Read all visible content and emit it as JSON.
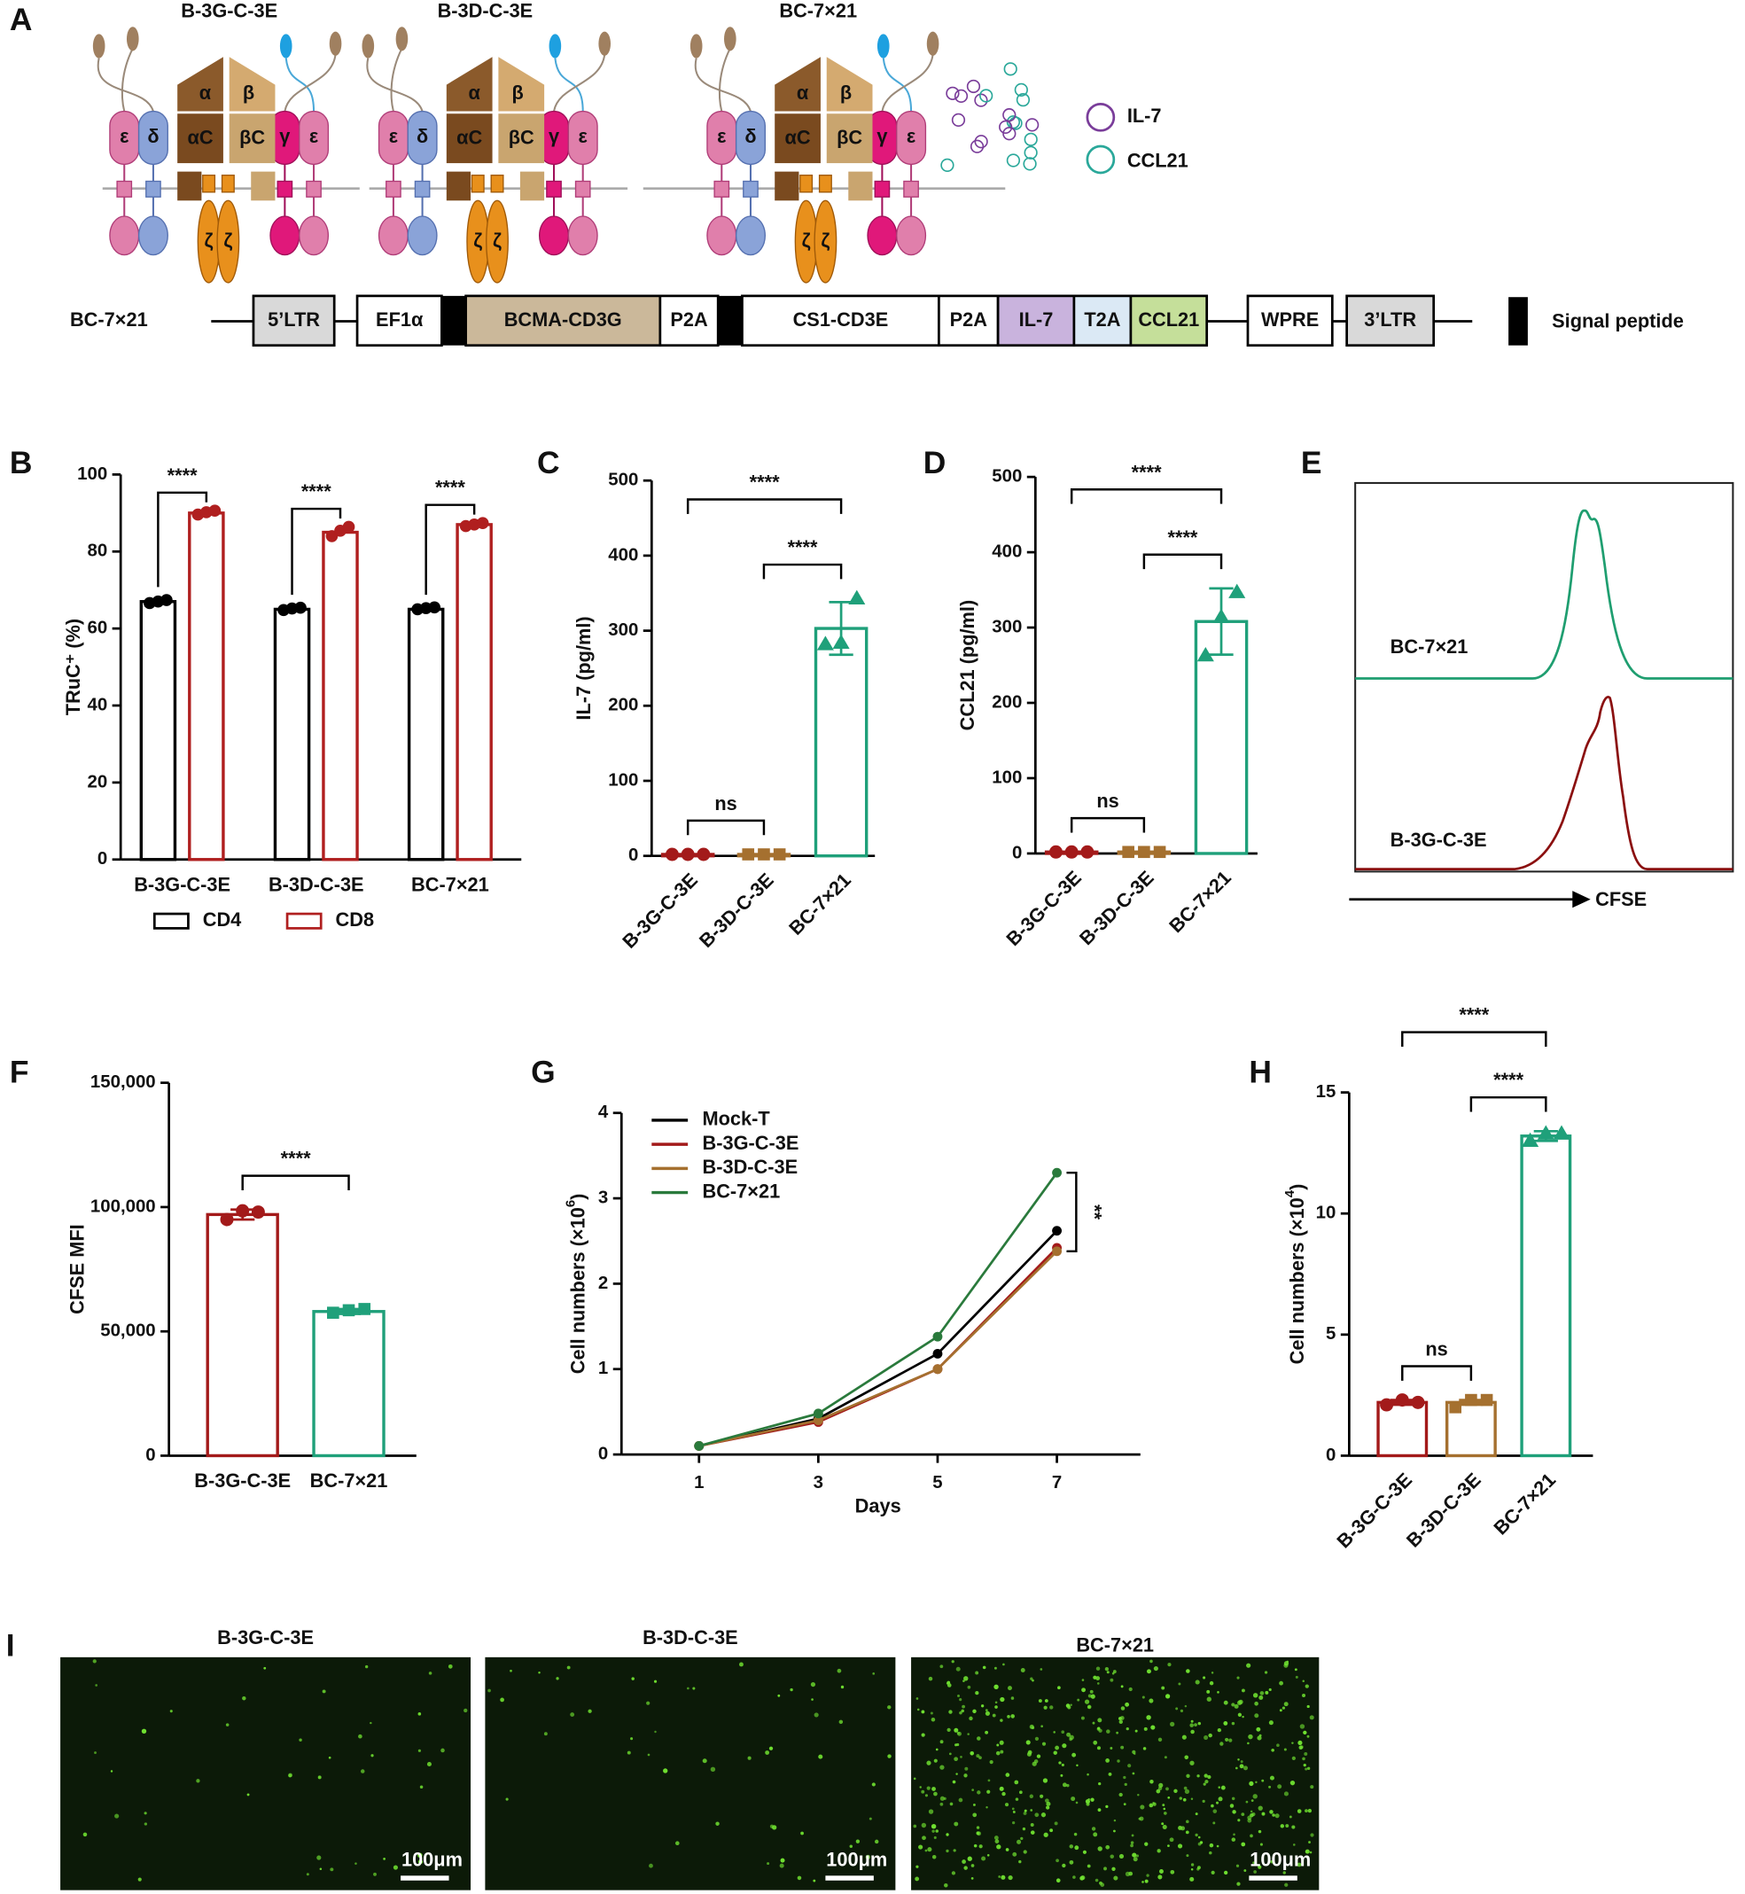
{
  "panel_labels": [
    "A",
    "B",
    "C",
    "D",
    "E",
    "F",
    "G",
    "H",
    "I"
  ],
  "diagram": {
    "construct_titles": [
      "B-3G-C-3E",
      "B-3D-C-3E",
      "BC-7×21"
    ],
    "chain_labels": [
      "ε",
      "δ",
      "α",
      "αC",
      "β",
      "βC",
      "γ",
      "ζ"
    ],
    "legend": [
      "IL-7",
      "CCL21"
    ],
    "vector_name": "BC-7×21",
    "elements": [
      "5’LTR",
      "EF1α",
      "BCMA-CD3G",
      "P2A",
      "CS1-CD3E",
      "P2A",
      "IL-7",
      "T2A",
      "CCL21",
      "WPRE",
      "3’LTR"
    ],
    "signal_peptide": "Signal peptide"
  },
  "chart_data": [
    {
      "type": "grouped_bar",
      "y_label": "TRuC⁺ (%)",
      "categories": [
        "B-3G-C-3E",
        "B-3D-C-3E",
        "BC-7×21"
      ],
      "series": [
        {
          "name": "CD4",
          "color": "#000000",
          "values": [
            67,
            65,
            65
          ],
          "points": [
            [
              66.6,
              67,
              67.4
            ],
            [
              64.8,
              65.2,
              65.4
            ],
            [
              65,
              65.3,
              65.5
            ]
          ]
        },
        {
          "name": "CD8",
          "color": "#b01f1f",
          "values": [
            90,
            85,
            87
          ],
          "points": [
            [
              89.6,
              90.2,
              90.6
            ],
            [
              84,
              85.4,
              86.4
            ],
            [
              86.6,
              87,
              87.4
            ]
          ]
        }
      ],
      "ylim": [
        0,
        100
      ],
      "yticks": [
        0,
        20,
        40,
        60,
        80,
        100
      ],
      "significance": [
        "****",
        "****",
        "****"
      ],
      "legend": "bottom"
    },
    {
      "type": "bar",
      "y_label": "IL-7 (pg/ml)",
      "categories": [
        "B-3G-C-3E",
        "B-3D-C-3E",
        "BC-7×21"
      ],
      "values": [
        2,
        2,
        303
      ],
      "errors": [
        0,
        0,
        35
      ],
      "points": [
        [
          2,
          2,
          2
        ],
        [
          2,
          2,
          2
        ],
        [
          282,
          284,
          343
        ]
      ],
      "colors": [
        "#a31a1a",
        "#a5702f",
        "#1fa07a"
      ],
      "markers": [
        "circle",
        "square",
        "triangle"
      ],
      "ylim": [
        0,
        500
      ],
      "yticks": [
        0,
        100,
        200,
        300,
        400,
        500
      ],
      "comparisons": [
        {
          "label": "ns",
          "between": [
            "B-3G-C-3E",
            "B-3D-C-3E"
          ]
        },
        {
          "label": "****",
          "between": [
            "B-3D-C-3E",
            "BC-7×21"
          ]
        },
        {
          "label": "****",
          "between": [
            "B-3G-C-3E",
            "BC-7×21"
          ]
        }
      ]
    },
    {
      "type": "bar",
      "y_label": "CCL21 (pg/ml)",
      "categories": [
        "B-3G-C-3E",
        "B-3D-C-3E",
        "BC-7×21"
      ],
      "values": [
        2,
        2,
        308
      ],
      "errors": [
        0,
        0,
        44
      ],
      "points": [
        [
          2,
          2,
          2
        ],
        [
          2,
          2,
          2
        ],
        [
          263,
          314,
          347
        ]
      ],
      "colors": [
        "#a31a1a",
        "#a5702f",
        "#1fa07a"
      ],
      "markers": [
        "circle",
        "square",
        "triangle"
      ],
      "ylim": [
        0,
        500
      ],
      "yticks": [
        0,
        100,
        200,
        300,
        400,
        500
      ],
      "comparisons": [
        {
          "label": "ns",
          "between": [
            "B-3G-C-3E",
            "B-3D-C-3E"
          ]
        },
        {
          "label": "****",
          "between": [
            "B-3D-C-3E",
            "BC-7×21"
          ]
        },
        {
          "label": "****",
          "between": [
            "B-3G-C-3E",
            "BC-7×21"
          ]
        }
      ]
    },
    {
      "type": "bar",
      "y_label": "CFSE MFI",
      "categories": [
        "B-3G-C-3E",
        "BC-7×21"
      ],
      "values": [
        97000,
        58000
      ],
      "errors": [
        2000,
        1000
      ],
      "points": [
        [
          95000,
          98500,
          98000
        ],
        [
          57500,
          58500,
          59000
        ]
      ],
      "colors": [
        "#a31a1a",
        "#1fa07a"
      ],
      "markers": [
        "circle",
        "square"
      ],
      "ylim": [
        0,
        150000
      ],
      "yticks": [
        0,
        {
          "value": 50000,
          "label": "50,000"
        },
        {
          "value": 100000,
          "label": "100,000"
        },
        {
          "value": 150000,
          "label": "150,000"
        }
      ],
      "comparisons": [
        {
          "label": "****",
          "between": [
            "B-3G-C-3E",
            "BC-7×21"
          ]
        }
      ]
    },
    {
      "type": "line",
      "x_label": "Days",
      "y_label": [
        "Cell numbers (×10",
        "6",
        ")"
      ],
      "x": [
        1,
        3,
        5,
        7
      ],
      "xlim": [
        -0.3,
        8.4
      ],
      "xticks": [
        1,
        3,
        5,
        7
      ],
      "ylim": [
        0,
        4
      ],
      "yticks": [
        0,
        1,
        2,
        3,
        4
      ],
      "series": [
        {
          "name": "Mock-T",
          "color": "#000000",
          "values": [
            0.1,
            0.42,
            1.18,
            2.62
          ]
        },
        {
          "name": "B-3G-C-3E",
          "color": "#a31a1a",
          "values": [
            0.1,
            0.38,
            1.0,
            2.42
          ]
        },
        {
          "name": "B-3D-C-3E",
          "color": "#a5702f",
          "values": [
            0.1,
            0.4,
            1.0,
            2.38
          ]
        },
        {
          "name": "BC-7×21",
          "color": "#2a7a3c",
          "values": [
            0.1,
            0.48,
            1.38,
            3.3
          ]
        }
      ],
      "legend": "upper left",
      "annotation": "**"
    },
    {
      "type": "bar",
      "y_label": [
        "Cell numbers (×10",
        "4",
        ")"
      ],
      "categories": [
        "B-3G-C-3E",
        "B-3D-C-3E",
        "BC-7×21"
      ],
      "values": [
        2.2,
        2.2,
        13.2
      ],
      "errors": [
        0.1,
        0.1,
        0.2
      ],
      "points": [
        [
          2.1,
          2.3,
          2.2
        ],
        [
          2.0,
          2.3,
          2.3
        ],
        [
          13.0,
          13.3,
          13.3
        ]
      ],
      "colors": [
        "#a31a1a",
        "#a5702f",
        "#1fa07a"
      ],
      "markers": [
        "circle",
        "square",
        "triangle"
      ],
      "ylim": [
        0,
        15
      ],
      "yticks": [
        0,
        5,
        10,
        15
      ],
      "comparisons": [
        {
          "label": "ns",
          "between": [
            "B-3G-C-3E",
            "B-3D-C-3E"
          ]
        },
        {
          "label": "****",
          "between": [
            "B-3D-C-3E",
            "BC-7×21"
          ]
        },
        {
          "label": "****",
          "between": [
            "B-3G-C-3E",
            "BC-7×21"
          ]
        }
      ]
    }
  ],
  "histogram_panel": {
    "labels": [
      "BC-7×21",
      "B-3G-C-3E"
    ],
    "x_label": "CFSE"
  },
  "micrographs": {
    "titles": [
      "B-3G-C-3E",
      "B-3D-C-3E",
      "BC-7×21"
    ],
    "scale_bar": "100μm"
  }
}
